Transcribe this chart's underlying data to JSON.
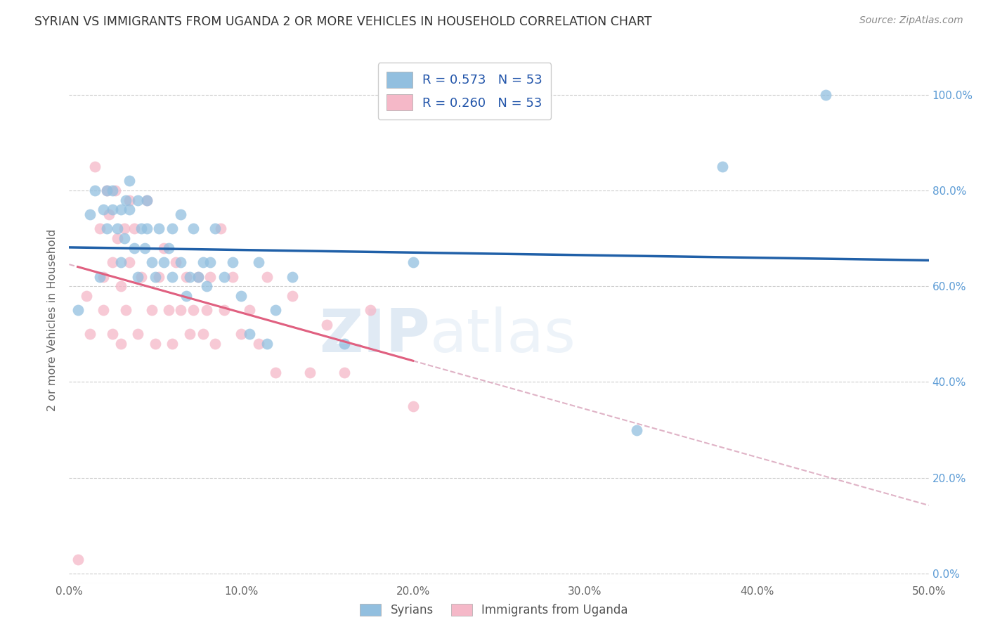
{
  "title": "SYRIAN VS IMMIGRANTS FROM UGANDA 2 OR MORE VEHICLES IN HOUSEHOLD CORRELATION CHART",
  "source": "Source: ZipAtlas.com",
  "ylabel": "2 or more Vehicles in Household",
  "xlim": [
    0.0,
    0.5
  ],
  "ylim": [
    -0.02,
    1.08
  ],
  "syrian_color": "#92bfdf",
  "uganda_color": "#f5b8c8",
  "syrian_line_color": "#2060a8",
  "uganda_line_color": "#e06080",
  "uganda_dashed_color": "#d8a0b8",
  "R_syrian": 0.573,
  "N_syrian": 53,
  "R_uganda": 0.26,
  "N_uganda": 53,
  "background_color": "#ffffff",
  "grid_color": "#cccccc",
  "syrian_x": [
    0.005,
    0.012,
    0.015,
    0.018,
    0.02,
    0.022,
    0.022,
    0.025,
    0.025,
    0.028,
    0.03,
    0.03,
    0.032,
    0.033,
    0.035,
    0.035,
    0.038,
    0.04,
    0.04,
    0.042,
    0.044,
    0.045,
    0.045,
    0.048,
    0.05,
    0.052,
    0.055,
    0.058,
    0.06,
    0.06,
    0.065,
    0.065,
    0.068,
    0.07,
    0.072,
    0.075,
    0.078,
    0.08,
    0.082,
    0.085,
    0.09,
    0.095,
    0.1,
    0.105,
    0.11,
    0.115,
    0.12,
    0.13,
    0.16,
    0.2,
    0.33,
    0.38,
    0.44
  ],
  "syrian_y": [
    0.55,
    0.75,
    0.8,
    0.62,
    0.76,
    0.72,
    0.8,
    0.76,
    0.8,
    0.72,
    0.65,
    0.76,
    0.7,
    0.78,
    0.76,
    0.82,
    0.68,
    0.62,
    0.78,
    0.72,
    0.68,
    0.72,
    0.78,
    0.65,
    0.62,
    0.72,
    0.65,
    0.68,
    0.62,
    0.72,
    0.65,
    0.75,
    0.58,
    0.62,
    0.72,
    0.62,
    0.65,
    0.6,
    0.65,
    0.72,
    0.62,
    0.65,
    0.58,
    0.5,
    0.65,
    0.48,
    0.55,
    0.62,
    0.48,
    0.65,
    0.3,
    0.85,
    1.0
  ],
  "uganda_x": [
    0.005,
    0.01,
    0.012,
    0.015,
    0.018,
    0.02,
    0.02,
    0.022,
    0.023,
    0.025,
    0.025,
    0.027,
    0.028,
    0.03,
    0.03,
    0.032,
    0.033,
    0.035,
    0.035,
    0.038,
    0.04,
    0.042,
    0.045,
    0.048,
    0.05,
    0.052,
    0.055,
    0.058,
    0.06,
    0.062,
    0.065,
    0.068,
    0.07,
    0.072,
    0.075,
    0.078,
    0.08,
    0.082,
    0.085,
    0.088,
    0.09,
    0.095,
    0.1,
    0.105,
    0.11,
    0.115,
    0.12,
    0.13,
    0.14,
    0.15,
    0.16,
    0.175,
    0.2
  ],
  "uganda_y": [
    0.03,
    0.58,
    0.5,
    0.85,
    0.72,
    0.55,
    0.62,
    0.8,
    0.75,
    0.5,
    0.65,
    0.8,
    0.7,
    0.48,
    0.6,
    0.72,
    0.55,
    0.65,
    0.78,
    0.72,
    0.5,
    0.62,
    0.78,
    0.55,
    0.48,
    0.62,
    0.68,
    0.55,
    0.48,
    0.65,
    0.55,
    0.62,
    0.5,
    0.55,
    0.62,
    0.5,
    0.55,
    0.62,
    0.48,
    0.72,
    0.55,
    0.62,
    0.5,
    0.55,
    0.48,
    0.62,
    0.42,
    0.58,
    0.42,
    0.52,
    0.42,
    0.55,
    0.35
  ],
  "watermark_zip": "ZIP",
  "watermark_atlas": "atlas"
}
